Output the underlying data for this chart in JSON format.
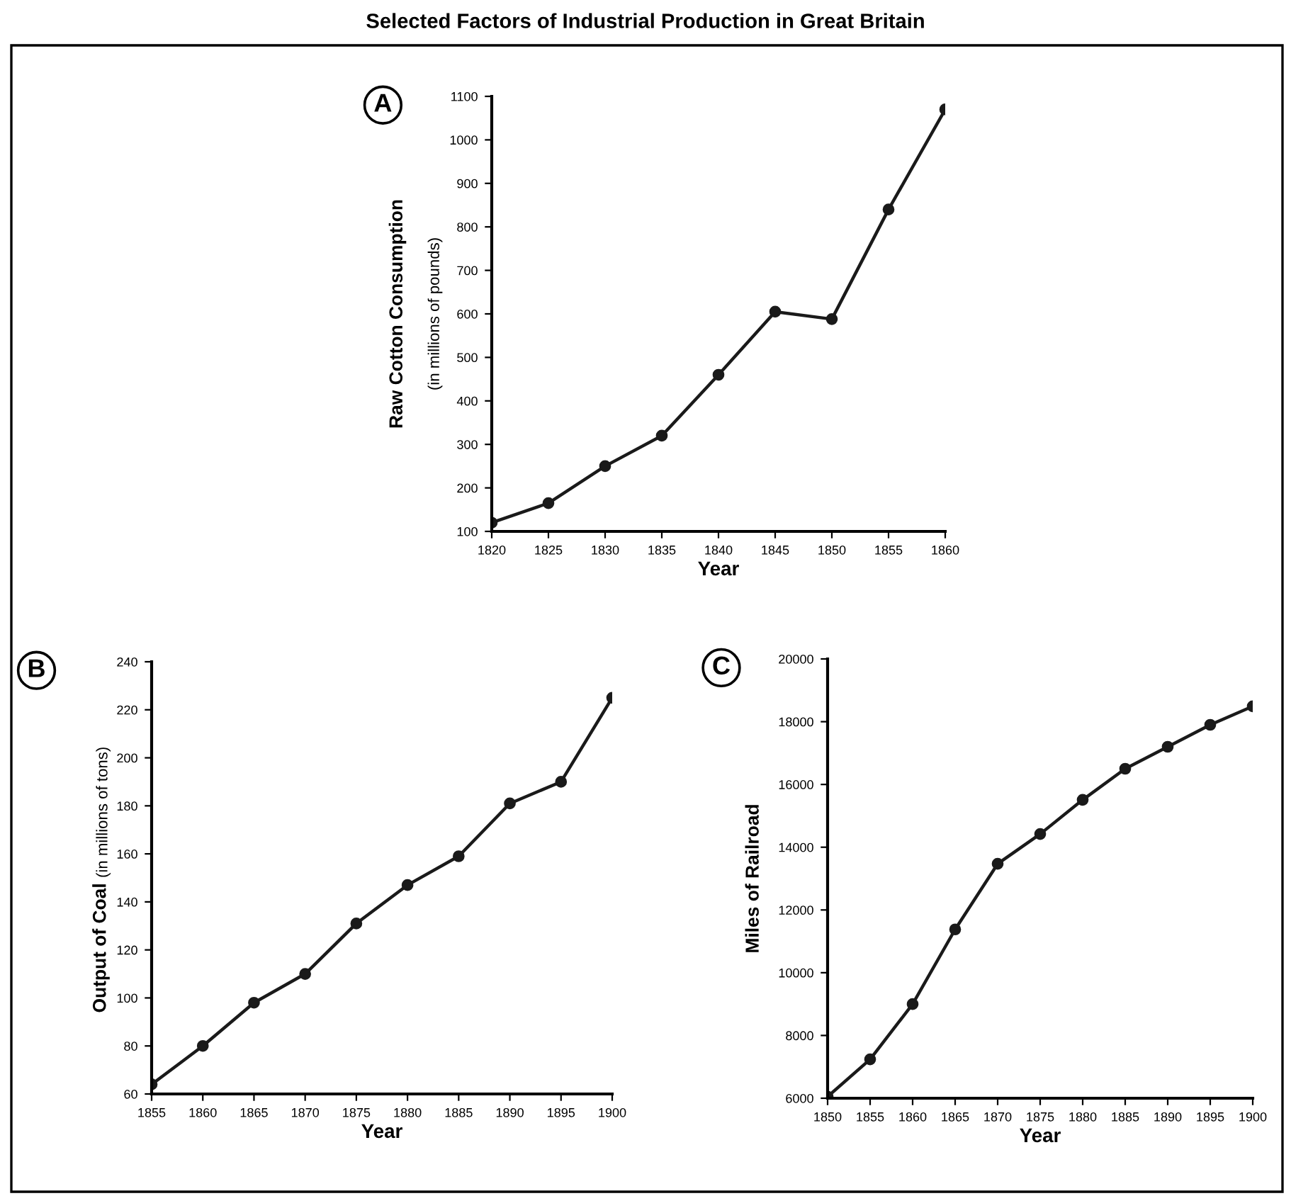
{
  "chart_data": [
    {
      "type": "line",
      "title": "Selected Factors of Industrial Production in Great Britain",
      "annotations": [
        "A"
      ],
      "xlabel": "Year",
      "ylabel": "Raw Cotton Consumption",
      "subtitle": "(in millions of pounds)",
      "x": [
        1820,
        1825,
        1830,
        1835,
        1840,
        1845,
        1850,
        1855,
        1860
      ],
      "series": [
        {
          "color": "#1a1a1a",
          "values": [
            120,
            165,
            250,
            320,
            460,
            605,
            588,
            840,
            1070
          ]
        }
      ],
      "xlim": [
        1820,
        1860
      ],
      "xticks": [
        1820,
        1825,
        1830,
        1835,
        1840,
        1845,
        1850,
        1855,
        1860
      ],
      "ylim": [
        100,
        1100
      ],
      "yticks": [
        100,
        200,
        300,
        400,
        500,
        600,
        700,
        800,
        900,
        1000,
        1100
      ],
      "grid": false,
      "marker": "circle",
      "line_style": "solid"
    },
    {
      "type": "line",
      "annotations": [
        "B"
      ],
      "xlabel": "Year",
      "ylabel": "Output of Coal",
      "subtitle": "(in millions of tons)",
      "x": [
        1855,
        1860,
        1865,
        1870,
        1875,
        1880,
        1885,
        1890,
        1895,
        1900
      ],
      "series": [
        {
          "color": "#1a1a1a",
          "values": [
            64,
            80,
            98,
            110,
            131,
            147,
            159,
            181,
            190,
            225
          ]
        }
      ],
      "xlim": [
        1855,
        1900
      ],
      "xticks": [
        1855,
        1860,
        1865,
        1870,
        1875,
        1880,
        1885,
        1890,
        1895,
        1900
      ],
      "ylim": [
        60,
        240
      ],
      "yticks": [
        60,
        80,
        100,
        120,
        140,
        160,
        180,
        200,
        220,
        240
      ],
      "grid": false,
      "marker": "circle",
      "line_style": "solid"
    },
    {
      "type": "line",
      "annotations": [
        "C"
      ],
      "xlabel": "Year",
      "ylabel": "Miles of Railroad",
      "x": [
        1850,
        1855,
        1860,
        1865,
        1870,
        1875,
        1880,
        1885,
        1890,
        1895,
        1900
      ],
      "series": [
        {
          "color": "#1a1a1a",
          "values": [
            6050,
            7240,
            9000,
            11380,
            13470,
            14420,
            15510,
            16500,
            17200,
            17900,
            18490
          ]
        }
      ],
      "xlim": [
        1850,
        1900
      ],
      "xticks": [
        1850,
        1855,
        1860,
        1865,
        1870,
        1875,
        1880,
        1885,
        1890,
        1895,
        1900
      ],
      "ylim": [
        6000,
        20000
      ],
      "yticks": [
        6000,
        8000,
        10000,
        12000,
        14000,
        16000,
        18000,
        20000
      ],
      "grid": false,
      "marker": "circle",
      "line_style": "solid"
    }
  ]
}
